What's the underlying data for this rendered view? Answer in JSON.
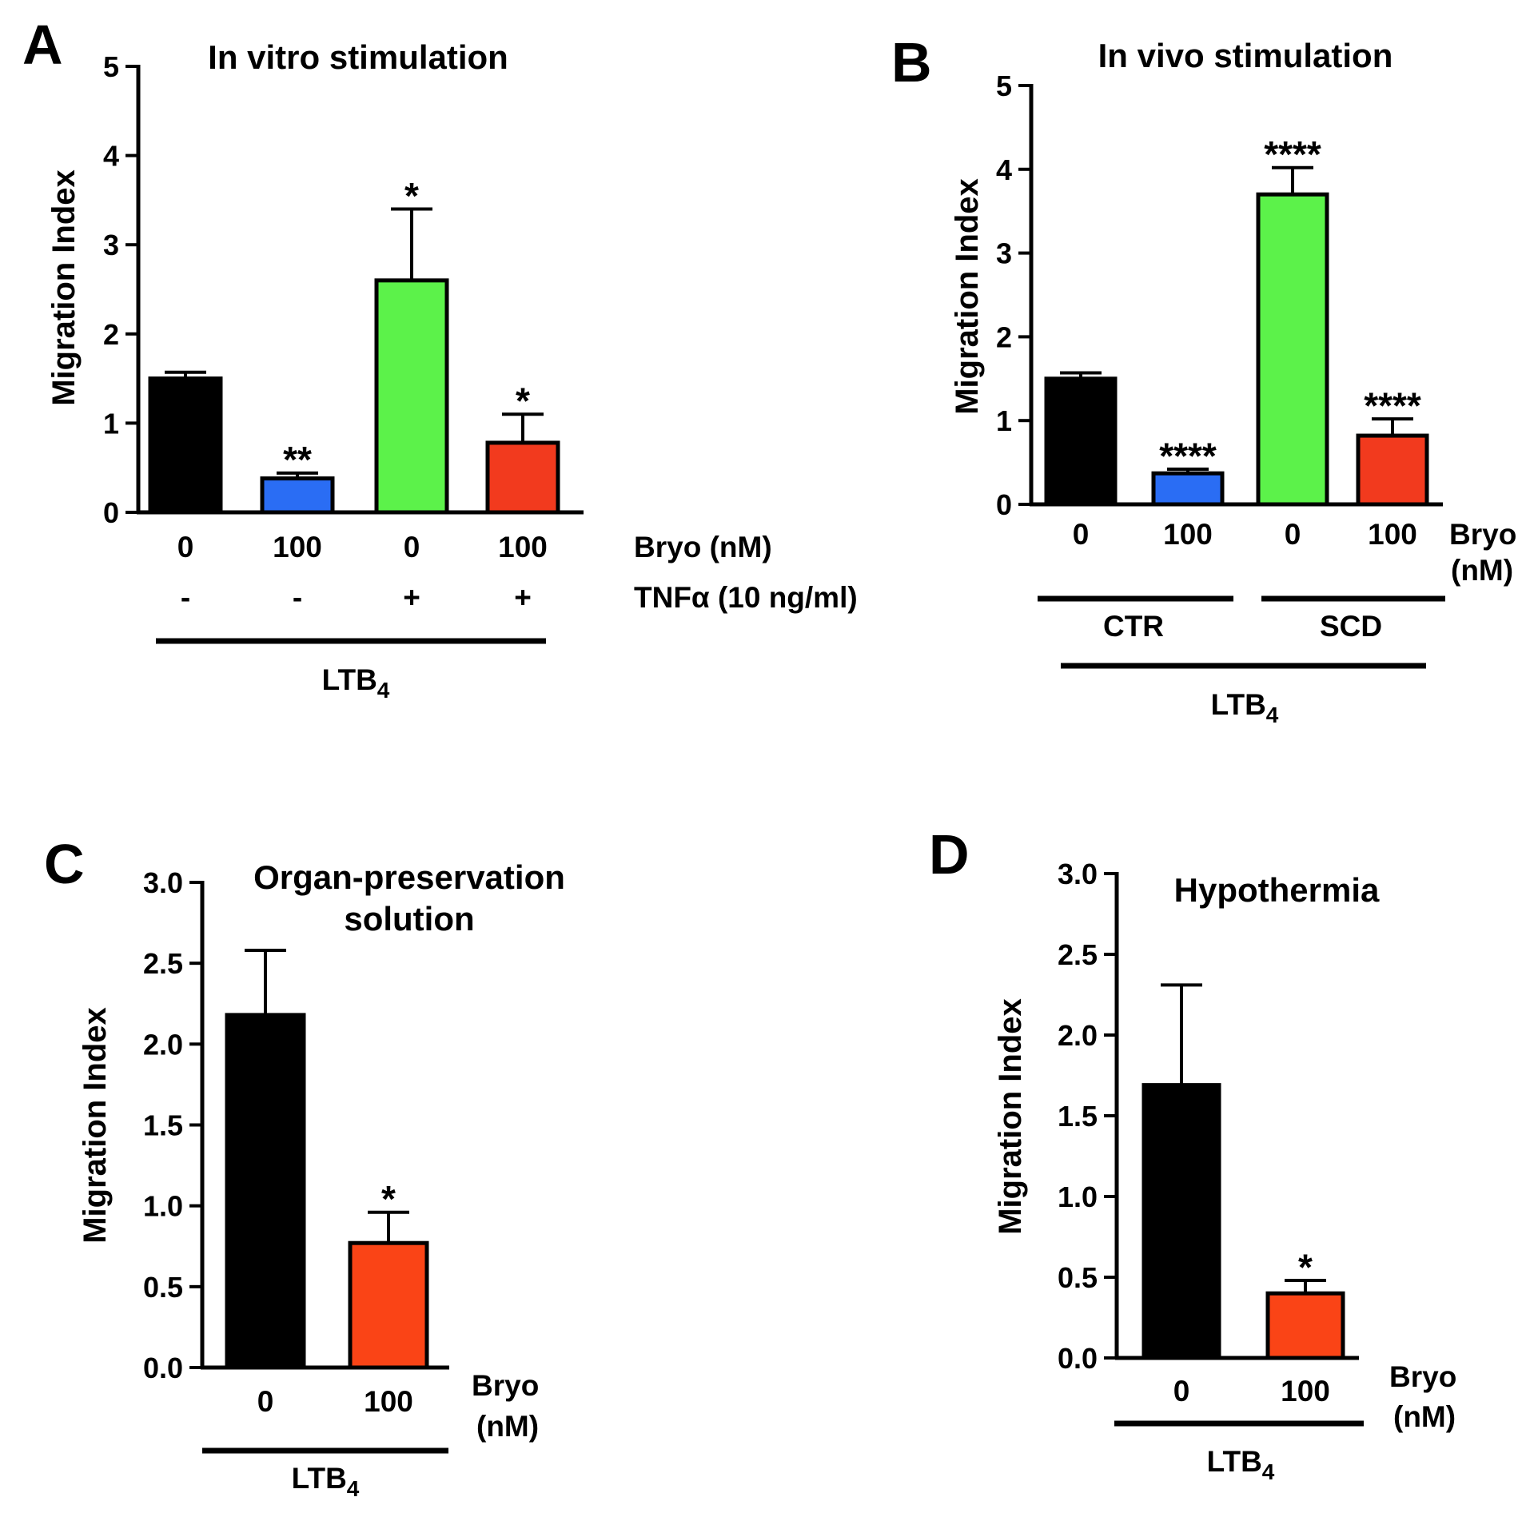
{
  "chart_data": [
    {
      "type": "bar",
      "panel": "A",
      "title": "In vitro stimulation",
      "ylabel": "Migration Index",
      "ylim": [
        0,
        5
      ],
      "yticks": [
        "0",
        "1",
        "2",
        "3",
        "4",
        "5"
      ],
      "categories": [
        "0",
        "100",
        "0",
        "100"
      ],
      "values": [
        1.5,
        0.38,
        2.6,
        0.78
      ],
      "errors": [
        0.07,
        0.06,
        0.8,
        0.32
      ],
      "colors": [
        "#000000",
        "#2a6df4",
        "#5cf24a",
        "#f23a1e"
      ],
      "significance": [
        "",
        "**",
        "*",
        "*"
      ],
      "row_labels": [
        {
          "label": "Bryo (nM)",
          "values": [
            "0",
            "100",
            "0",
            "100"
          ]
        },
        {
          "label": "TNFα (10 ng/ml)",
          "values": [
            "-",
            "-",
            "+",
            "+"
          ]
        }
      ],
      "bracket_label": "LTB",
      "bracket_sub": "4"
    },
    {
      "type": "bar",
      "panel": "B",
      "title": "In vivo stimulation",
      "ylabel": "Migration Index",
      "ylim": [
        0,
        5
      ],
      "yticks": [
        "0",
        "1",
        "2",
        "3",
        "4",
        "5"
      ],
      "categories": [
        "0",
        "100",
        "0",
        "100"
      ],
      "values": [
        1.5,
        0.37,
        3.7,
        0.82
      ],
      "errors": [
        0.07,
        0.05,
        0.32,
        0.2
      ],
      "colors": [
        "#000000",
        "#2a6df4",
        "#5cf24a",
        "#f23a1e"
      ],
      "significance": [
        "",
        "****",
        "****",
        "****"
      ],
      "xlabel_lines": [
        "Bryo",
        "(nM)"
      ],
      "groups": [
        "CTR",
        "SCD"
      ],
      "bracket_label": "LTB",
      "bracket_sub": "4"
    },
    {
      "type": "bar",
      "panel": "C",
      "title_lines": [
        "Organ-preservation",
        "solution"
      ],
      "ylabel": "Migration Index",
      "ylim": [
        0,
        3
      ],
      "yticks": [
        "0.0",
        "0.5",
        "1.0",
        "1.5",
        "2.0",
        "2.5",
        "3.0"
      ],
      "categories": [
        "0",
        "100"
      ],
      "values": [
        2.18,
        0.77
      ],
      "errors": [
        0.4,
        0.19
      ],
      "colors": [
        "#000000",
        "#fa4416"
      ],
      "significance": [
        "",
        "*"
      ],
      "xlabel_lines": [
        "Bryo",
        "(nM)"
      ],
      "bracket_label": "LTB",
      "bracket_sub": "4"
    },
    {
      "type": "bar",
      "panel": "D",
      "title": "Hypothermia",
      "ylabel": "Migration Index",
      "ylim": [
        0,
        3
      ],
      "yticks": [
        "0.0",
        "0.5",
        "1.0",
        "1.5",
        "2.0",
        "2.5",
        "3.0"
      ],
      "categories": [
        "0",
        "100"
      ],
      "values": [
        1.69,
        0.4
      ],
      "errors": [
        0.62,
        0.08
      ],
      "colors": [
        "#000000",
        "#fa4416"
      ],
      "significance": [
        "",
        "*"
      ],
      "xlabel_lines": [
        "Bryo",
        "(nM)"
      ],
      "bracket_label": "LTB",
      "bracket_sub": "4"
    }
  ]
}
